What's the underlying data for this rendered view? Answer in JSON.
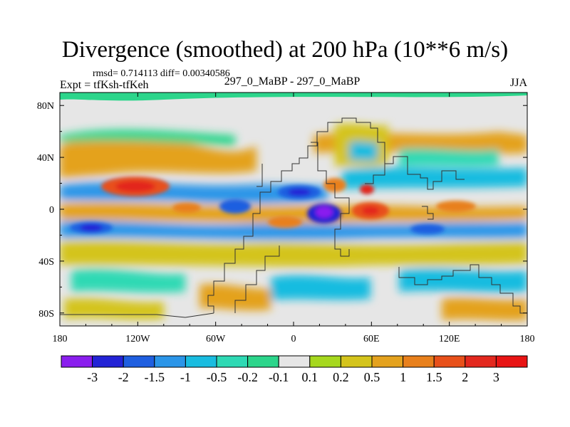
{
  "chart_data": {
    "type": "heatmap",
    "title": "Divergence (smoothed) at 200 hPa (10**6 m/s)",
    "stats_text": "rmsd= 0.714113 diff= 0.00340586",
    "expt_text": "Expt = tfKsh-tfKeh",
    "case_text": "297_0_MaBP - 297_0_MaBP",
    "season": "JJA",
    "xlim": [
      -180,
      180
    ],
    "ylim": [
      -90,
      90
    ],
    "x_ticks": [
      {
        "value": -180,
        "label": "180"
      },
      {
        "value": -120,
        "label": "120W"
      },
      {
        "value": -60,
        "label": "60W"
      },
      {
        "value": 0,
        "label": "0"
      },
      {
        "value": 60,
        "label": "60E"
      },
      {
        "value": 120,
        "label": "120E"
      },
      {
        "value": 180,
        "label": "180"
      }
    ],
    "y_ticks": [
      {
        "value": 80,
        "label": "80N"
      },
      {
        "value": 40,
        "label": "40N"
      },
      {
        "value": 0,
        "label": "0"
      },
      {
        "value": -40,
        "label": "40S"
      },
      {
        "value": -80,
        "label": "80S"
      }
    ],
    "contour_levels": [
      "-3",
      "-2",
      "-1.5",
      "-1",
      "-0.5",
      "-0.2",
      "-0.1",
      "0.1",
      "0.2",
      "0.5",
      "1",
      "1.5",
      "2",
      "3"
    ],
    "colorbar_colors": [
      "#8A1EEE",
      "#2323D6",
      "#1F5FE0",
      "#2B95E8",
      "#19BCE0",
      "#2ED9B4",
      "#2CD58B",
      "#E6E6E6",
      "#A6D81E",
      "#D4C41C",
      "#E4A21E",
      "#E8801C",
      "#E8501A",
      "#E3281E",
      "#E81414"
    ],
    "features": [
      {
        "lon": -140,
        "lat": 20,
        "value": 2.2
      },
      {
        "lon": -100,
        "lat": 24,
        "value": 0.9
      },
      {
        "lon": -150,
        "lat": -10,
        "value": -1.4
      },
      {
        "lon": -110,
        "lat": -8,
        "value": -0.8
      },
      {
        "lon": -30,
        "lat": 5,
        "value": -1.2
      },
      {
        "lon": 20,
        "lat": 0,
        "value": -3.1
      },
      {
        "lon": 60,
        "lat": 0,
        "value": 1.8
      },
      {
        "lon": 55,
        "lat": 15,
        "value": 1.6
      },
      {
        "lon": -10,
        "lat": 18,
        "value": -1.0
      },
      {
        "lon": 100,
        "lat": 22,
        "value": -0.6
      },
      {
        "lon": 130,
        "lat": -5,
        "value": 0.8
      },
      {
        "lon": 150,
        "lat": 10,
        "value": -0.5
      },
      {
        "lon": -60,
        "lat": -30,
        "value": 0.7
      },
      {
        "lon": 0,
        "lat": -45,
        "value": -0.5
      }
    ]
  }
}
